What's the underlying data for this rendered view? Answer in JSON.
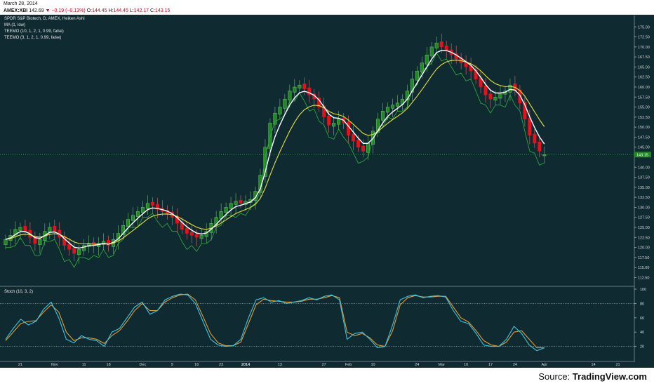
{
  "header": {
    "date": "March 28, 2014",
    "symbol": "AMEX:XBI",
    "last": "142.69",
    "change_symbol": "▼",
    "change": "−0.19 (−0.13%)",
    "o_label": "O:",
    "o_value": "144.45",
    "h_label": "H:",
    "h_value": "144.45",
    "l_label": "L:",
    "l_value": "142.17",
    "c_label": "C:",
    "c_value": "143.15"
  },
  "legend": {
    "title": "SPDR S&P Biotech, D, AMEX, Heiken Ashi",
    "items": [
      "MA (1, low)",
      "TEEMO (10, 1, 2, 1, 0.99, false)",
      "TEEMO (3, 1, 2, 1, 0.99, false)"
    ]
  },
  "stoch_label": "Stoch (10, 3, 2)",
  "source": {
    "prefix": "Source: ",
    "brand": "TradingView.com"
  },
  "colors": {
    "background": "#0f2a31",
    "up": "#1f8a22",
    "down": "#e8101a",
    "fast_line": "#ffffff",
    "slow_line": "#e8e23a",
    "low_line": "#2fb53a",
    "stoch_k": "#37c6e6",
    "stoch_d": "#e89a2e",
    "price_tag": "#1f8a22"
  },
  "chart_data": [
    {
      "type": "candlestick",
      "title": "SPDR S&P Biotech, D, AMEX, Heiken Ashi",
      "ylim": [
        111,
        177.5
      ],
      "y_ticks": [
        "175.00",
        "172.50",
        "170.00",
        "167.50",
        "165.00",
        "162.50",
        "160.00",
        "157.50",
        "155.00",
        "152.50",
        "150.00",
        "147.50",
        "145.00",
        "143.15",
        "140.00",
        "137.50",
        "135.00",
        "132.50",
        "130.00",
        "127.50",
        "125.00",
        "122.50",
        "120.00",
        "117.50",
        "115.00",
        "112.50"
      ],
      "last_price": 143.15,
      "x_tick_labels": [
        {
          "label": "21",
          "bar": 3
        },
        {
          "label": "Nov",
          "bar": 10
        },
        {
          "label": "11",
          "bar": 16
        },
        {
          "label": "18",
          "bar": 21
        },
        {
          "label": "Dec",
          "bar": 28
        },
        {
          "label": "9",
          "bar": 34
        },
        {
          "label": "16",
          "bar": 39
        },
        {
          "label": "23",
          "bar": 44
        },
        {
          "label": "2014",
          "bar": 49
        },
        {
          "label": "13",
          "bar": 56
        },
        {
          "label": "27",
          "bar": 65
        },
        {
          "label": "Feb",
          "bar": 70
        },
        {
          "label": "10",
          "bar": 75
        },
        {
          "label": "24",
          "bar": 84
        },
        {
          "label": "Mar",
          "bar": 89
        },
        {
          "label": "10",
          "bar": 94
        },
        {
          "label": "17",
          "bar": 99
        },
        {
          "label": "24",
          "bar": 104
        },
        {
          "label": "Apr",
          "bar": 110
        },
        {
          "label": "14",
          "bar": 120
        },
        {
          "label": "21",
          "bar": 125
        }
      ],
      "close": [
        122,
        123,
        124.5,
        125,
        124,
        122.5,
        121,
        122,
        124,
        125,
        124,
        122.5,
        120.5,
        119.5,
        118.5,
        119.5,
        120.5,
        121,
        120.5,
        121,
        121.5,
        120.5,
        122,
        123.5,
        125.5,
        127,
        128,
        129,
        130,
        131,
        130.5,
        129.5,
        129,
        128.5,
        127.5,
        126,
        124.5,
        123.5,
        123,
        122.5,
        123,
        124,
        126,
        127.5,
        129,
        130,
        131,
        131.5,
        131,
        131.5,
        132,
        134,
        138,
        145,
        151,
        153.5,
        155,
        157,
        159,
        160,
        160.5,
        159.5,
        158,
        157,
        155,
        152.5,
        150.5,
        151,
        152,
        151,
        148,
        146.5,
        145,
        144,
        146,
        149,
        152,
        154,
        155,
        155.5,
        156,
        157,
        159,
        162,
        164,
        166,
        168,
        170,
        171,
        170,
        169,
        168,
        167,
        166,
        165,
        164,
        162,
        160,
        158,
        157,
        157.5,
        158.5,
        159,
        160.5,
        159,
        156,
        152,
        148,
        146,
        144,
        143.15
      ],
      "up": [
        1,
        1,
        1,
        1,
        0,
        0,
        0,
        1,
        1,
        1,
        0,
        0,
        0,
        0,
        0,
        1,
        1,
        1,
        0,
        1,
        1,
        0,
        1,
        1,
        1,
        1,
        1,
        1,
        1,
        1,
        0,
        0,
        0,
        0,
        0,
        0,
        0,
        0,
        0,
        0,
        1,
        1,
        1,
        1,
        1,
        1,
        1,
        1,
        0,
        1,
        1,
        1,
        1,
        1,
        1,
        1,
        1,
        1,
        1,
        1,
        1,
        0,
        0,
        0,
        0,
        0,
        0,
        1,
        1,
        0,
        0,
        0,
        0,
        0,
        1,
        1,
        1,
        1,
        1,
        1,
        1,
        1,
        1,
        1,
        1,
        1,
        1,
        1,
        1,
        0,
        0,
        0,
        0,
        0,
        0,
        0,
        0,
        0,
        0,
        0,
        1,
        1,
        1,
        1,
        0,
        0,
        0,
        0,
        0,
        0,
        1
      ]
    },
    {
      "type": "line",
      "title": "Stoch (10, 3, 2)",
      "ylim": [
        0,
        100
      ],
      "y_ticks": [
        "100",
        "80",
        "60",
        "40",
        "20"
      ],
      "levels": [
        80,
        20
      ],
      "series": [
        {
          "values": [
            30,
            45,
            58,
            50,
            55,
            72,
            82,
            60,
            30,
            25,
            35,
            30,
            28,
            20,
            40,
            45,
            60,
            75,
            82,
            65,
            70,
            85,
            90,
            93,
            92,
            80,
            55,
            30,
            22,
            20,
            21,
            30,
            60,
            85,
            88,
            82,
            84,
            80,
            82,
            84,
            88,
            85,
            90,
            92,
            85,
            30,
            38,
            40,
            30,
            18,
            20,
            50,
            85,
            90,
            92,
            88,
            90,
            91,
            89,
            70,
            55,
            52,
            38,
            22,
            20,
            20,
            30,
            48,
            38,
            22,
            14,
            18
          ]
        },
        {
          "values": [
            28,
            40,
            52,
            55,
            56,
            68,
            78,
            68,
            40,
            28,
            32,
            32,
            30,
            24,
            35,
            42,
            55,
            70,
            80,
            70,
            70,
            82,
            88,
            92,
            93,
            85,
            62,
            38,
            25,
            21,
            21,
            26,
            52,
            78,
            86,
            84,
            83,
            82,
            82,
            83,
            86,
            86,
            88,
            91,
            88,
            40,
            35,
            38,
            32,
            22,
            20,
            42,
            78,
            88,
            91,
            89,
            89,
            90,
            90,
            75,
            60,
            54,
            42,
            28,
            22,
            20,
            26,
            40,
            42,
            30,
            18,
            18
          ]
        }
      ]
    }
  ]
}
